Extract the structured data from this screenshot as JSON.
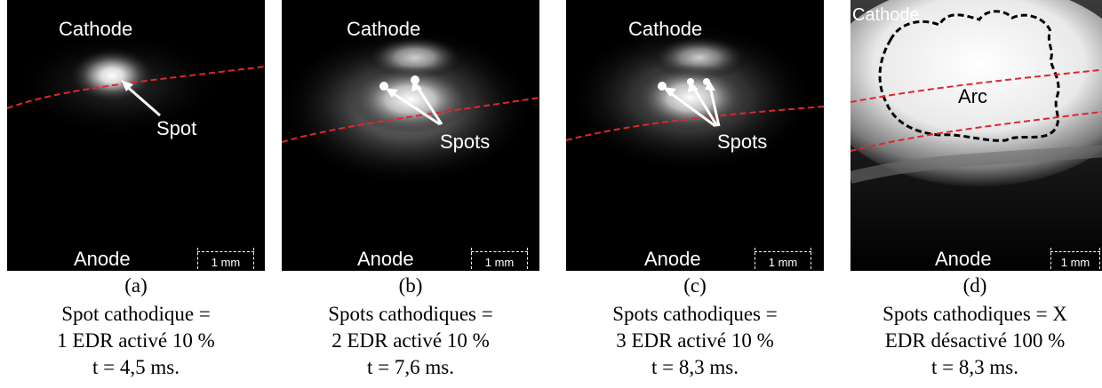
{
  "panels": [
    {
      "letter": "(a)",
      "cathode_label": "Cathode",
      "anode_label": "Anode",
      "annotation": "Spot",
      "scale_label": "1 mm",
      "caption_line1": "Spot cathodique =",
      "caption_line2": "1 EDR activé 10 %",
      "caption_line3": "t = 4,5 ms."
    },
    {
      "letter": "(b)",
      "cathode_label": "Cathode",
      "anode_label": "Anode",
      "annotation": "Spots",
      "scale_label": "1 mm",
      "caption_line1": "Spots cathodiques =",
      "caption_line2": "2 EDR activé 10 %",
      "caption_line3": "t = 7,6 ms."
    },
    {
      "letter": "(c)",
      "cathode_label": "Cathode",
      "anode_label": "Anode",
      "annotation": "Spots",
      "scale_label": "1 mm",
      "caption_line1": "Spots cathodiques =",
      "caption_line2": "3 EDR activé 10 %",
      "caption_line3": "t = 8,3 ms."
    },
    {
      "letter": "(d)",
      "cathode_label": "Cathode",
      "anode_label": "Anode",
      "annotation": "Arc",
      "scale_label": "1 mm",
      "caption_line1": "Spots cathodiques = X",
      "caption_line2": "EDR désactivé 100 %",
      "caption_line3": "t = 8,3 ms."
    }
  ],
  "colors": {
    "boundary_line": "#e0262b",
    "arc_outline": "#000000",
    "photo_background": "#000000",
    "label_text": "#ffffff"
  }
}
